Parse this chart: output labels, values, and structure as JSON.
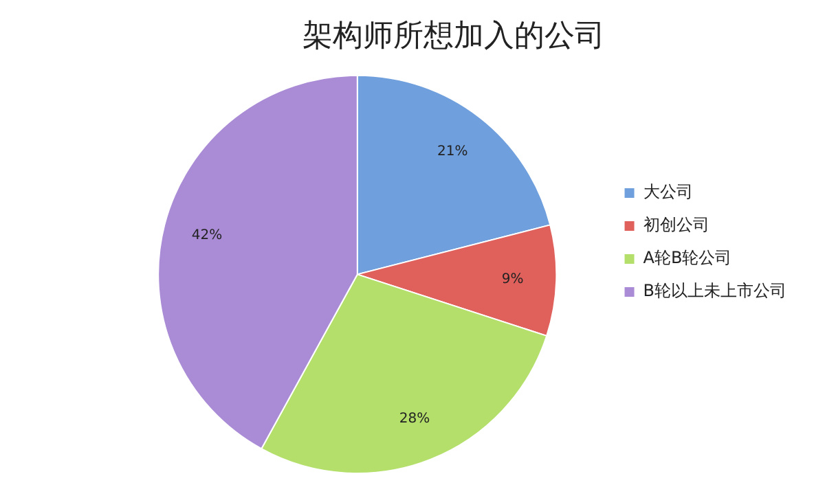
{
  "chart_data": {
    "type": "pie",
    "title": "架构师所想加入的公司",
    "categories": [
      "大公司",
      "初创公司",
      "A轮B轮公司",
      "B轮以上未上市公司"
    ],
    "values": [
      21,
      9,
      28,
      42
    ],
    "colors": [
      "#6f9fdc",
      "#e0605c",
      "#b3df6a",
      "#a98bd6"
    ],
    "value_labels": [
      "21%",
      "9%",
      "28%",
      "42%"
    ],
    "legend": "right"
  }
}
